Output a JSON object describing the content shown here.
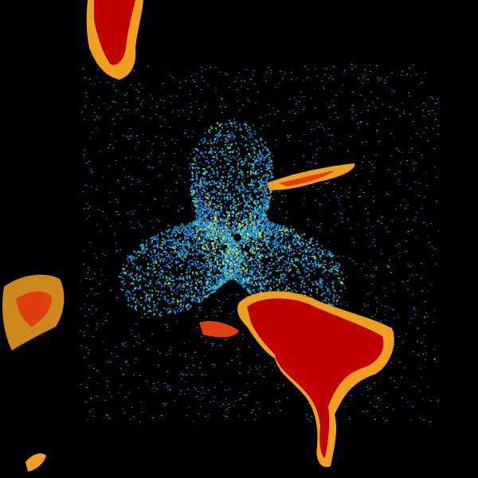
{
  "palette": {
    "background": "#000000",
    "light_rain": [
      "#1e78c8",
      "#2aa0d8",
      "#3cc8c8",
      "#a0e070"
    ],
    "moderate": [
      "#f0e040",
      "#f0a020"
    ],
    "heavy": [
      "#e04010",
      "#c00000"
    ]
  }
}
